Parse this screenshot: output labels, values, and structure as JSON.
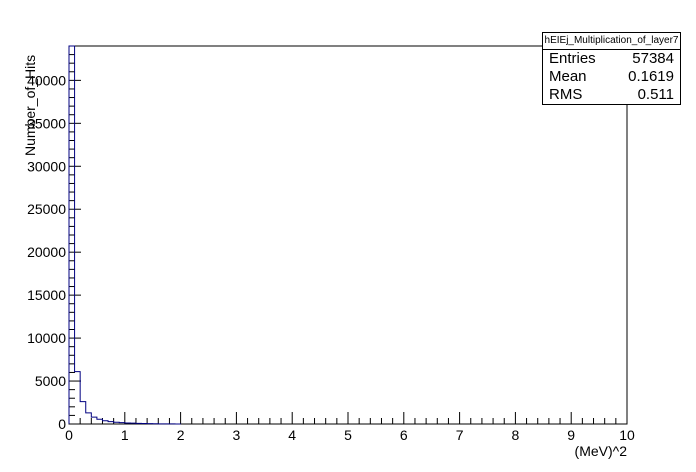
{
  "chart_data": {
    "type": "histogram",
    "title": "",
    "xlabel": "(MeV)^2",
    "ylabel": "Number_of_Hits",
    "xlim": [
      0,
      10
    ],
    "ylim": [
      0,
      44000
    ],
    "bin_width": 0.1,
    "x_ticks": [
      "0",
      "1",
      "2",
      "3",
      "4",
      "5",
      "6",
      "7",
      "8",
      "9",
      "10"
    ],
    "y_ticks": [
      "0",
      "5000",
      "10000",
      "15000",
      "20000",
      "25000",
      "30000",
      "35000",
      "40000"
    ],
    "bins": [
      {
        "x0": 0.0,
        "value": 44000
      },
      {
        "x0": 0.1,
        "value": 6100
      },
      {
        "x0": 0.2,
        "value": 2600
      },
      {
        "x0": 0.3,
        "value": 1300
      },
      {
        "x0": 0.4,
        "value": 800
      },
      {
        "x0": 0.5,
        "value": 550
      },
      {
        "x0": 0.6,
        "value": 380
      },
      {
        "x0": 0.7,
        "value": 280
      },
      {
        "x0": 0.8,
        "value": 210
      },
      {
        "x0": 0.9,
        "value": 160
      },
      {
        "x0": 1.0,
        "value": 120
      },
      {
        "x0": 1.1,
        "value": 95
      },
      {
        "x0": 1.2,
        "value": 75
      },
      {
        "x0": 1.3,
        "value": 60
      },
      {
        "x0": 1.4,
        "value": 45
      },
      {
        "x0": 1.5,
        "value": 30
      },
      {
        "x0": 1.6,
        "value": 20
      },
      {
        "x0": 1.7,
        "value": 12
      },
      {
        "x0": 1.8,
        "value": 8
      },
      {
        "x0": 1.9,
        "value": 5
      }
    ],
    "stats": {
      "name": "hEIEj_Multiplication_of_layer7",
      "entries_label": "Entries",
      "entries": "57384",
      "mean_label": "Mean",
      "mean": "0.1619",
      "rms_label": "RMS",
      "rms": "0.511"
    },
    "line_color": "#000080",
    "grid": false,
    "legend_position": "top-right"
  }
}
